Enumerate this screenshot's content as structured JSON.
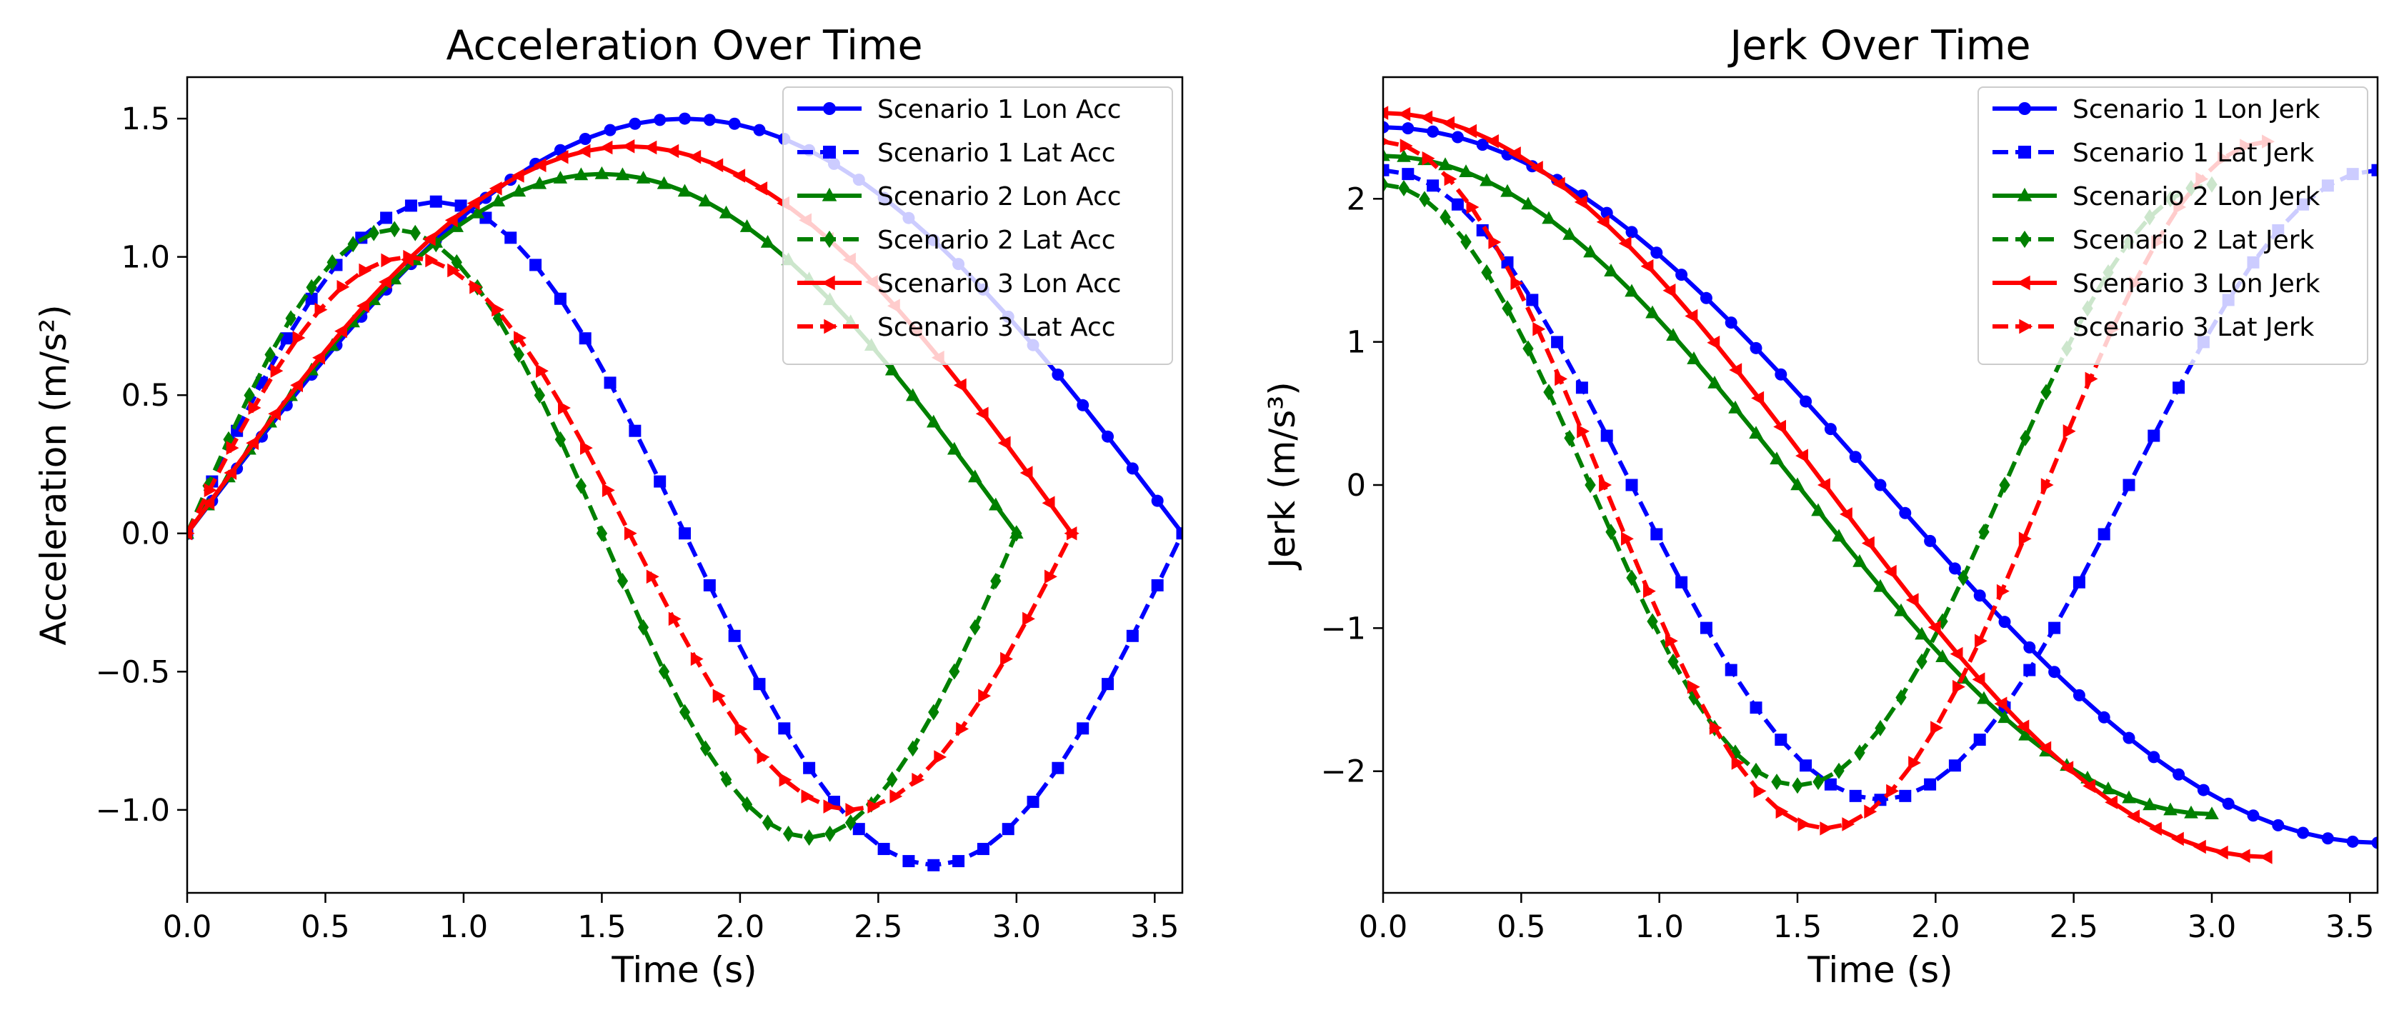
{
  "chart_data": [
    {
      "type": "line",
      "title": "Acceleration Over Time",
      "xlabel": "Time (s)",
      "ylabel": "Acceleration (m/s²)",
      "xlim": [
        0,
        3.6
      ],
      "ylim": [
        -1.3,
        1.65
      ],
      "xticks": [
        0,
        0.5,
        1,
        1.5,
        2,
        2.5,
        3,
        3.5
      ],
      "yticks": [
        -1,
        -0.5,
        0,
        0.5,
        1,
        1.5
      ],
      "xtick_labels": [
        "0.0",
        "0.5",
        "1.0",
        "1.5",
        "2.0",
        "2.5",
        "3.0",
        "3.5"
      ],
      "ytick_labels": [
        "−1.0",
        "−0.5",
        "0.0",
        "0.5",
        "1.0",
        "1.5"
      ],
      "legend_position": "top-right",
      "series": [
        {
          "name": "Scenario 1 Lon Acc",
          "color": "#0000ff",
          "dash": "solid",
          "marker": "circle",
          "T": 3.6,
          "fn": "sinhalf",
          "amp": 1.5,
          "offset": 0,
          "phase": 0
        },
        {
          "name": "Scenario 1 Lat Acc",
          "color": "#0000ff",
          "dash": "dashed",
          "marker": "square",
          "T": 3.6,
          "fn": "sinfull",
          "amp": 1.2,
          "offset": 0,
          "phase": 0
        },
        {
          "name": "Scenario 2 Lon Acc",
          "color": "#008000",
          "dash": "solid",
          "marker": "triangle-up",
          "T": 3.0,
          "fn": "sinhalf",
          "amp": 1.3,
          "offset": 0,
          "phase": 0
        },
        {
          "name": "Scenario 2 Lat Acc",
          "color": "#008000",
          "dash": "dashed",
          "marker": "diamond",
          "T": 3.0,
          "fn": "sinfull",
          "amp": 1.1,
          "offset": 0,
          "phase": 0
        },
        {
          "name": "Scenario 3 Lon Acc",
          "color": "#ff0000",
          "dash": "solid",
          "marker": "triangle-left",
          "T": 3.2,
          "fn": "sinhalf",
          "amp": 1.4,
          "offset": 0,
          "phase": 0
        },
        {
          "name": "Scenario 3 Lat Acc",
          "color": "#ff0000",
          "dash": "dashed",
          "marker": "triangle-right",
          "T": 3.2,
          "fn": "sinfull",
          "amp": 1.0,
          "offset": 0,
          "phase": 0
        }
      ]
    },
    {
      "type": "line",
      "title": "Jerk Over Time",
      "xlabel": "Time (s)",
      "ylabel": "Jerk (m/s³)",
      "xlim": [
        0,
        3.6
      ],
      "ylim": [
        -2.85,
        2.85
      ],
      "xticks": [
        0,
        0.5,
        1,
        1.5,
        2,
        2.5,
        3,
        3.5
      ],
      "yticks": [
        -2,
        -1,
        0,
        1,
        2
      ],
      "xtick_labels": [
        "0.0",
        "0.5",
        "1.0",
        "1.5",
        "2.0",
        "2.5",
        "3.0",
        "3.5"
      ],
      "ytick_labels": [
        "−2",
        "−1",
        "0",
        "1",
        "2"
      ],
      "legend_position": "top-right",
      "series": [
        {
          "name": "Scenario 1 Lon Jerk",
          "color": "#0000ff",
          "dash": "solid",
          "marker": "circle",
          "T": 3.6,
          "fn": "coshalf",
          "amp": 2.5,
          "offset": 0,
          "phase": 0
        },
        {
          "name": "Scenario 1 Lat Jerk",
          "color": "#0000ff",
          "dash": "dashed",
          "marker": "square",
          "T": 3.6,
          "fn": "cosfull",
          "amp": 2.2,
          "offset": 0,
          "phase": 0
        },
        {
          "name": "Scenario 2 Lon Jerk",
          "color": "#008000",
          "dash": "solid",
          "marker": "triangle-up",
          "T": 3.0,
          "fn": "coshalf",
          "amp": 2.3,
          "offset": 0,
          "phase": 0
        },
        {
          "name": "Scenario 2 Lat Jerk",
          "color": "#008000",
          "dash": "dashed",
          "marker": "diamond",
          "T": 3.0,
          "fn": "cosfull",
          "amp": 2.1,
          "offset": 0,
          "phase": 0
        },
        {
          "name": "Scenario 3 Lon Jerk",
          "color": "#ff0000",
          "dash": "solid",
          "marker": "triangle-left",
          "T": 3.2,
          "fn": "coshalf",
          "amp": 2.6,
          "offset": 0,
          "phase": 0
        },
        {
          "name": "Scenario 3 Lat Jerk",
          "color": "#ff0000",
          "dash": "dashed",
          "marker": "triangle-right",
          "T": 3.2,
          "fn": "cosfull",
          "amp": 2.4,
          "offset": 0,
          "phase": 0
        }
      ]
    }
  ]
}
